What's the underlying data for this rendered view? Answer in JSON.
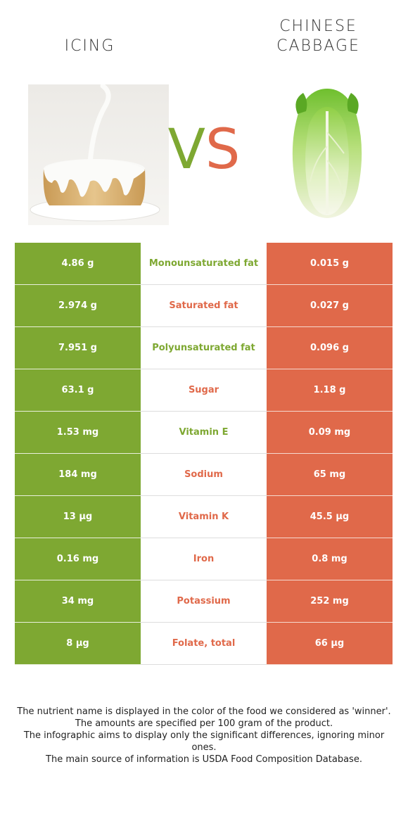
{
  "header": {
    "left_food": "ICING",
    "right_food": "CHINESE\nCABBAGE",
    "vs_v": "V",
    "vs_s": "S"
  },
  "colors": {
    "winner_left": "#7ea832",
    "winner_right": "#e0694a"
  },
  "rows": [
    {
      "left": "4.86 g",
      "nutrient": "Monounsaturated fat",
      "right": "0.015 g",
      "winner": "left"
    },
    {
      "left": "2.974 g",
      "nutrient": "Saturated fat",
      "right": "0.027 g",
      "winner": "right"
    },
    {
      "left": "7.951 g",
      "nutrient": "Polyunsaturated fat",
      "right": "0.096 g",
      "winner": "left"
    },
    {
      "left": "63.1 g",
      "nutrient": "Sugar",
      "right": "1.18 g",
      "winner": "right"
    },
    {
      "left": "1.53 mg",
      "nutrient": "Vitamin E",
      "right": "0.09 mg",
      "winner": "left"
    },
    {
      "left": "184 mg",
      "nutrient": "Sodium",
      "right": "65 mg",
      "winner": "right"
    },
    {
      "left": "13 µg",
      "nutrient": "Vitamin K",
      "right": "45.5 µg",
      "winner": "right"
    },
    {
      "left": "0.16 mg",
      "nutrient": "Iron",
      "right": "0.8 mg",
      "winner": "right"
    },
    {
      "left": "34 mg",
      "nutrient": "Potassium",
      "right": "252 mg",
      "winner": "right"
    },
    {
      "left": "8 µg",
      "nutrient": "Folate, total",
      "right": "66 µg",
      "winner": "right"
    }
  ],
  "footer": {
    "line1": "The nutrient name is displayed in the color of the food we considered as 'winner'.",
    "line2": "The amounts are specified per 100 gram of the product.",
    "line3": "The infographic aims to display only the significant differences, ignoring minor ones.",
    "line4": "The main source of information is USDA Food Composition Database."
  }
}
